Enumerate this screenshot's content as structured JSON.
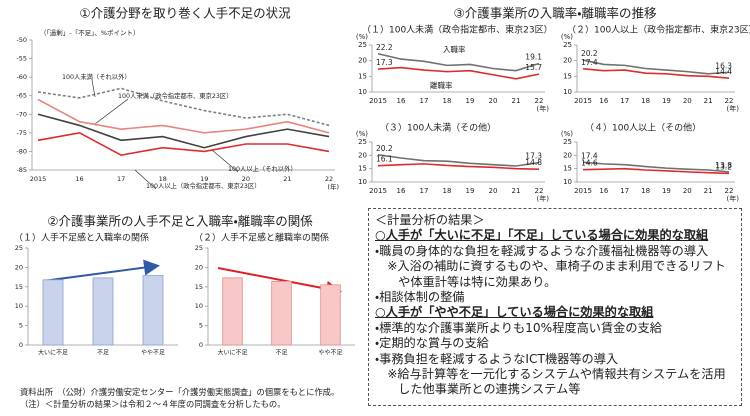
{
  "section_titles": [
    "②介護事業所の人手不足と入職率・離職率の関係",
    "③介護事業所の入職率・離職率の推移"
  ],
  "chart_data": [
    {
      "type": "line",
      "title": "①介護分野を取り巻く人手不足の状況",
      "note": "（「過剰」-「不足」、%ポイント）",
      "categories": [
        "2015",
        "16",
        "17",
        "18",
        "19",
        "20",
        "21",
        "22"
      ],
      "x_unit": "(年)",
      "ylim": [
        -85,
        -50
      ],
      "yticks": [
        -85,
        -80,
        -75,
        -70,
        -65,
        -60,
        -55,
        -50
      ],
      "series": [
        {
          "name": "100人未満（それ以外）",
          "color": "#808080",
          "dashed": true,
          "values": [
            -64,
            -65.6,
            -63,
            -66.4,
            -69,
            -71,
            -70,
            -73
          ]
        },
        {
          "name": "100人未満（政令指定都市、東京23区）",
          "color": "#404040",
          "dashed": false,
          "values": [
            -70,
            -73,
            -77,
            -76,
            -79,
            -76,
            -74,
            -76
          ]
        },
        {
          "name": "100人以上（それ以外）",
          "color": "#e8837e",
          "dashed": false,
          "values": [
            -66,
            -72,
            -74,
            -73,
            -75,
            -74,
            -72,
            -75
          ]
        },
        {
          "name": "100人以上（政令指定都市、東京23区）",
          "color": "#e02b2b",
          "dashed": false,
          "values": [
            -77,
            -75,
            -81,
            -79,
            -80,
            -78,
            -78,
            -80
          ]
        }
      ]
    },
    {
      "type": "line",
      "title": "（１）100人未満（政令指定都市、東京23区）",
      "point_labels": "ends",
      "categories": [
        "2015",
        "16",
        "17",
        "18",
        "19",
        "20",
        "21",
        "22"
      ],
      "x_unit": "(年)",
      "y_unit": "(%)",
      "ylim": [
        10,
        25
      ],
      "yticks": [
        10,
        15,
        20,
        25
      ],
      "series": [
        {
          "name": "入職率",
          "color": "#707070",
          "values": [
            22.2,
            20.5,
            19.8,
            18.5,
            18.8,
            17.5,
            16.8,
            19.1
          ]
        },
        {
          "name": "離職率",
          "color": "#e02b2b",
          "values": [
            17.3,
            17.8,
            17.0,
            16.5,
            16.8,
            15.5,
            14.2,
            15.7
          ]
        }
      ]
    },
    {
      "type": "line",
      "title": "（２）100人以上（政令指定都市、東京23区）",
      "point_labels": "ends",
      "categories": [
        "2015",
        "16",
        "17",
        "18",
        "19",
        "20",
        "21",
        "22"
      ],
      "x_unit": "(年)",
      "y_unit": "(%)",
      "ylim": [
        10,
        25
      ],
      "yticks": [
        10,
        15,
        20,
        25
      ],
      "series": [
        {
          "color": "#707070",
          "values": [
            20.2,
            18.8,
            18.5,
            17.5,
            17.0,
            16.5,
            15.8,
            16.3
          ]
        },
        {
          "color": "#e02b2b",
          "values": [
            17.4,
            16.8,
            17.0,
            16.0,
            15.8,
            15.2,
            15.0,
            14.4
          ]
        }
      ]
    },
    {
      "type": "line",
      "title": "（３）100人未満（その他）",
      "point_labels": "ends",
      "categories": [
        "2015",
        "16",
        "17",
        "18",
        "19",
        "20",
        "21",
        "22"
      ],
      "x_unit": "(年)",
      "y_unit": "(%)",
      "ylim": [
        10,
        25
      ],
      "yticks": [
        10,
        15,
        20,
        25
      ],
      "series": [
        {
          "color": "#707070",
          "values": [
            20.2,
            19.0,
            18.0,
            17.8,
            17.0,
            16.5,
            16.0,
            17.3
          ]
        },
        {
          "color": "#e02b2b",
          "values": [
            16.1,
            16.5,
            16.8,
            16.2,
            15.8,
            15.5,
            15.0,
            14.8
          ]
        }
      ]
    },
    {
      "type": "line",
      "title": "（４）100人以上（その他）",
      "point_labels": "ends",
      "categories": [
        "2015",
        "16",
        "17",
        "18",
        "19",
        "20",
        "21",
        "22"
      ],
      "x_unit": "(年)",
      "y_unit": "(%)",
      "ylim": [
        10,
        25
      ],
      "yticks": [
        10,
        15,
        20,
        25
      ],
      "series": [
        {
          "color": "#707070",
          "values": [
            17.4,
            16.8,
            16.5,
            15.8,
            15.2,
            14.8,
            14.5,
            13.8
          ]
        },
        {
          "color": "#e02b2b",
          "values": [
            14.6,
            14.8,
            15.0,
            14.5,
            14.2,
            13.8,
            13.5,
            13.2
          ]
        }
      ]
    },
    {
      "type": "bar",
      "title": "（１）人手不足感と入職率の関係",
      "categories": [
        "大いに不足",
        "不足",
        "やや不足"
      ],
      "values": [
        16.8,
        17.3,
        17.9
      ],
      "color": "#c9d3ec",
      "ylim": [
        0,
        25
      ],
      "yticks": [
        0,
        5,
        10,
        15,
        20,
        25
      ]
    },
    {
      "type": "bar",
      "title": "（２）人手不足感と離職率の関係",
      "categories": [
        "大いに不足",
        "不足",
        "やや不足"
      ],
      "values": [
        17.3,
        16.4,
        15.5
      ],
      "color": "#f8c8c8",
      "ylim": [
        0,
        25
      ],
      "yticks": [
        0,
        5,
        10,
        15,
        20,
        25
      ]
    }
  ],
  "analysis": {
    "title": "＜計量分析の結果＞",
    "groups": [
      {
        "heading": "○人手が「大いに不足」「不足」している場合に効果的な取組",
        "items": [
          {
            "text": "・職員の身体的な負担を軽減するような介護福祉機器等の導入",
            "note": "※入浴の補助に資するものや、車椅子のまま利用できるリフトや体重計等は特に効果あり。"
          },
          {
            "text": "・相談体制の整備"
          }
        ]
      },
      {
        "heading": "○人手が「やや不足」している場合に効果的な取組",
        "items": [
          {
            "text": "・標準的な介護事業所よりも10%程度高い賃金の支給"
          },
          {
            "text": "・定期的な賞与の支給"
          },
          {
            "text": "・事務負担を軽減するようなICT機器等の導入",
            "note": "※給与計算等を一元化するシステムや情報共有システムを活用した他事業所との連携システム等"
          }
        ]
      }
    ]
  },
  "notes": [
    "資料出所　（公財）介護労働安定センター「介護労働実態調査」の個票をもとに作成。",
    "（注）＜計量分析の結果＞は令和２～４年度の同調査を分析したもの。"
  ]
}
